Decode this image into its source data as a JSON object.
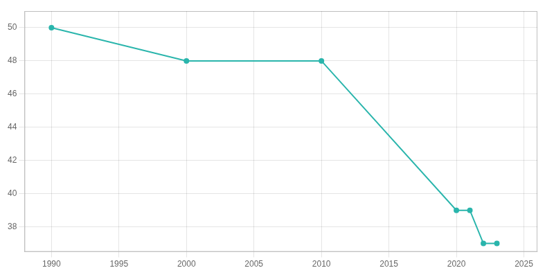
{
  "chart_data": {
    "type": "line",
    "x": [
      1990,
      2000,
      2010,
      2020,
      2021,
      2022,
      2023
    ],
    "values": [
      50,
      48,
      48,
      39,
      39,
      37,
      37
    ],
    "color": "#2ab5ac",
    "marker": "circle",
    "xlim": [
      1988,
      2026
    ],
    "ylim": [
      36.5,
      51.0
    ],
    "xticks": [
      1990,
      1995,
      2000,
      2005,
      2010,
      2015,
      2020,
      2025
    ],
    "yticks": [
      38,
      40,
      42,
      44,
      46,
      48,
      50
    ],
    "grid": true
  }
}
